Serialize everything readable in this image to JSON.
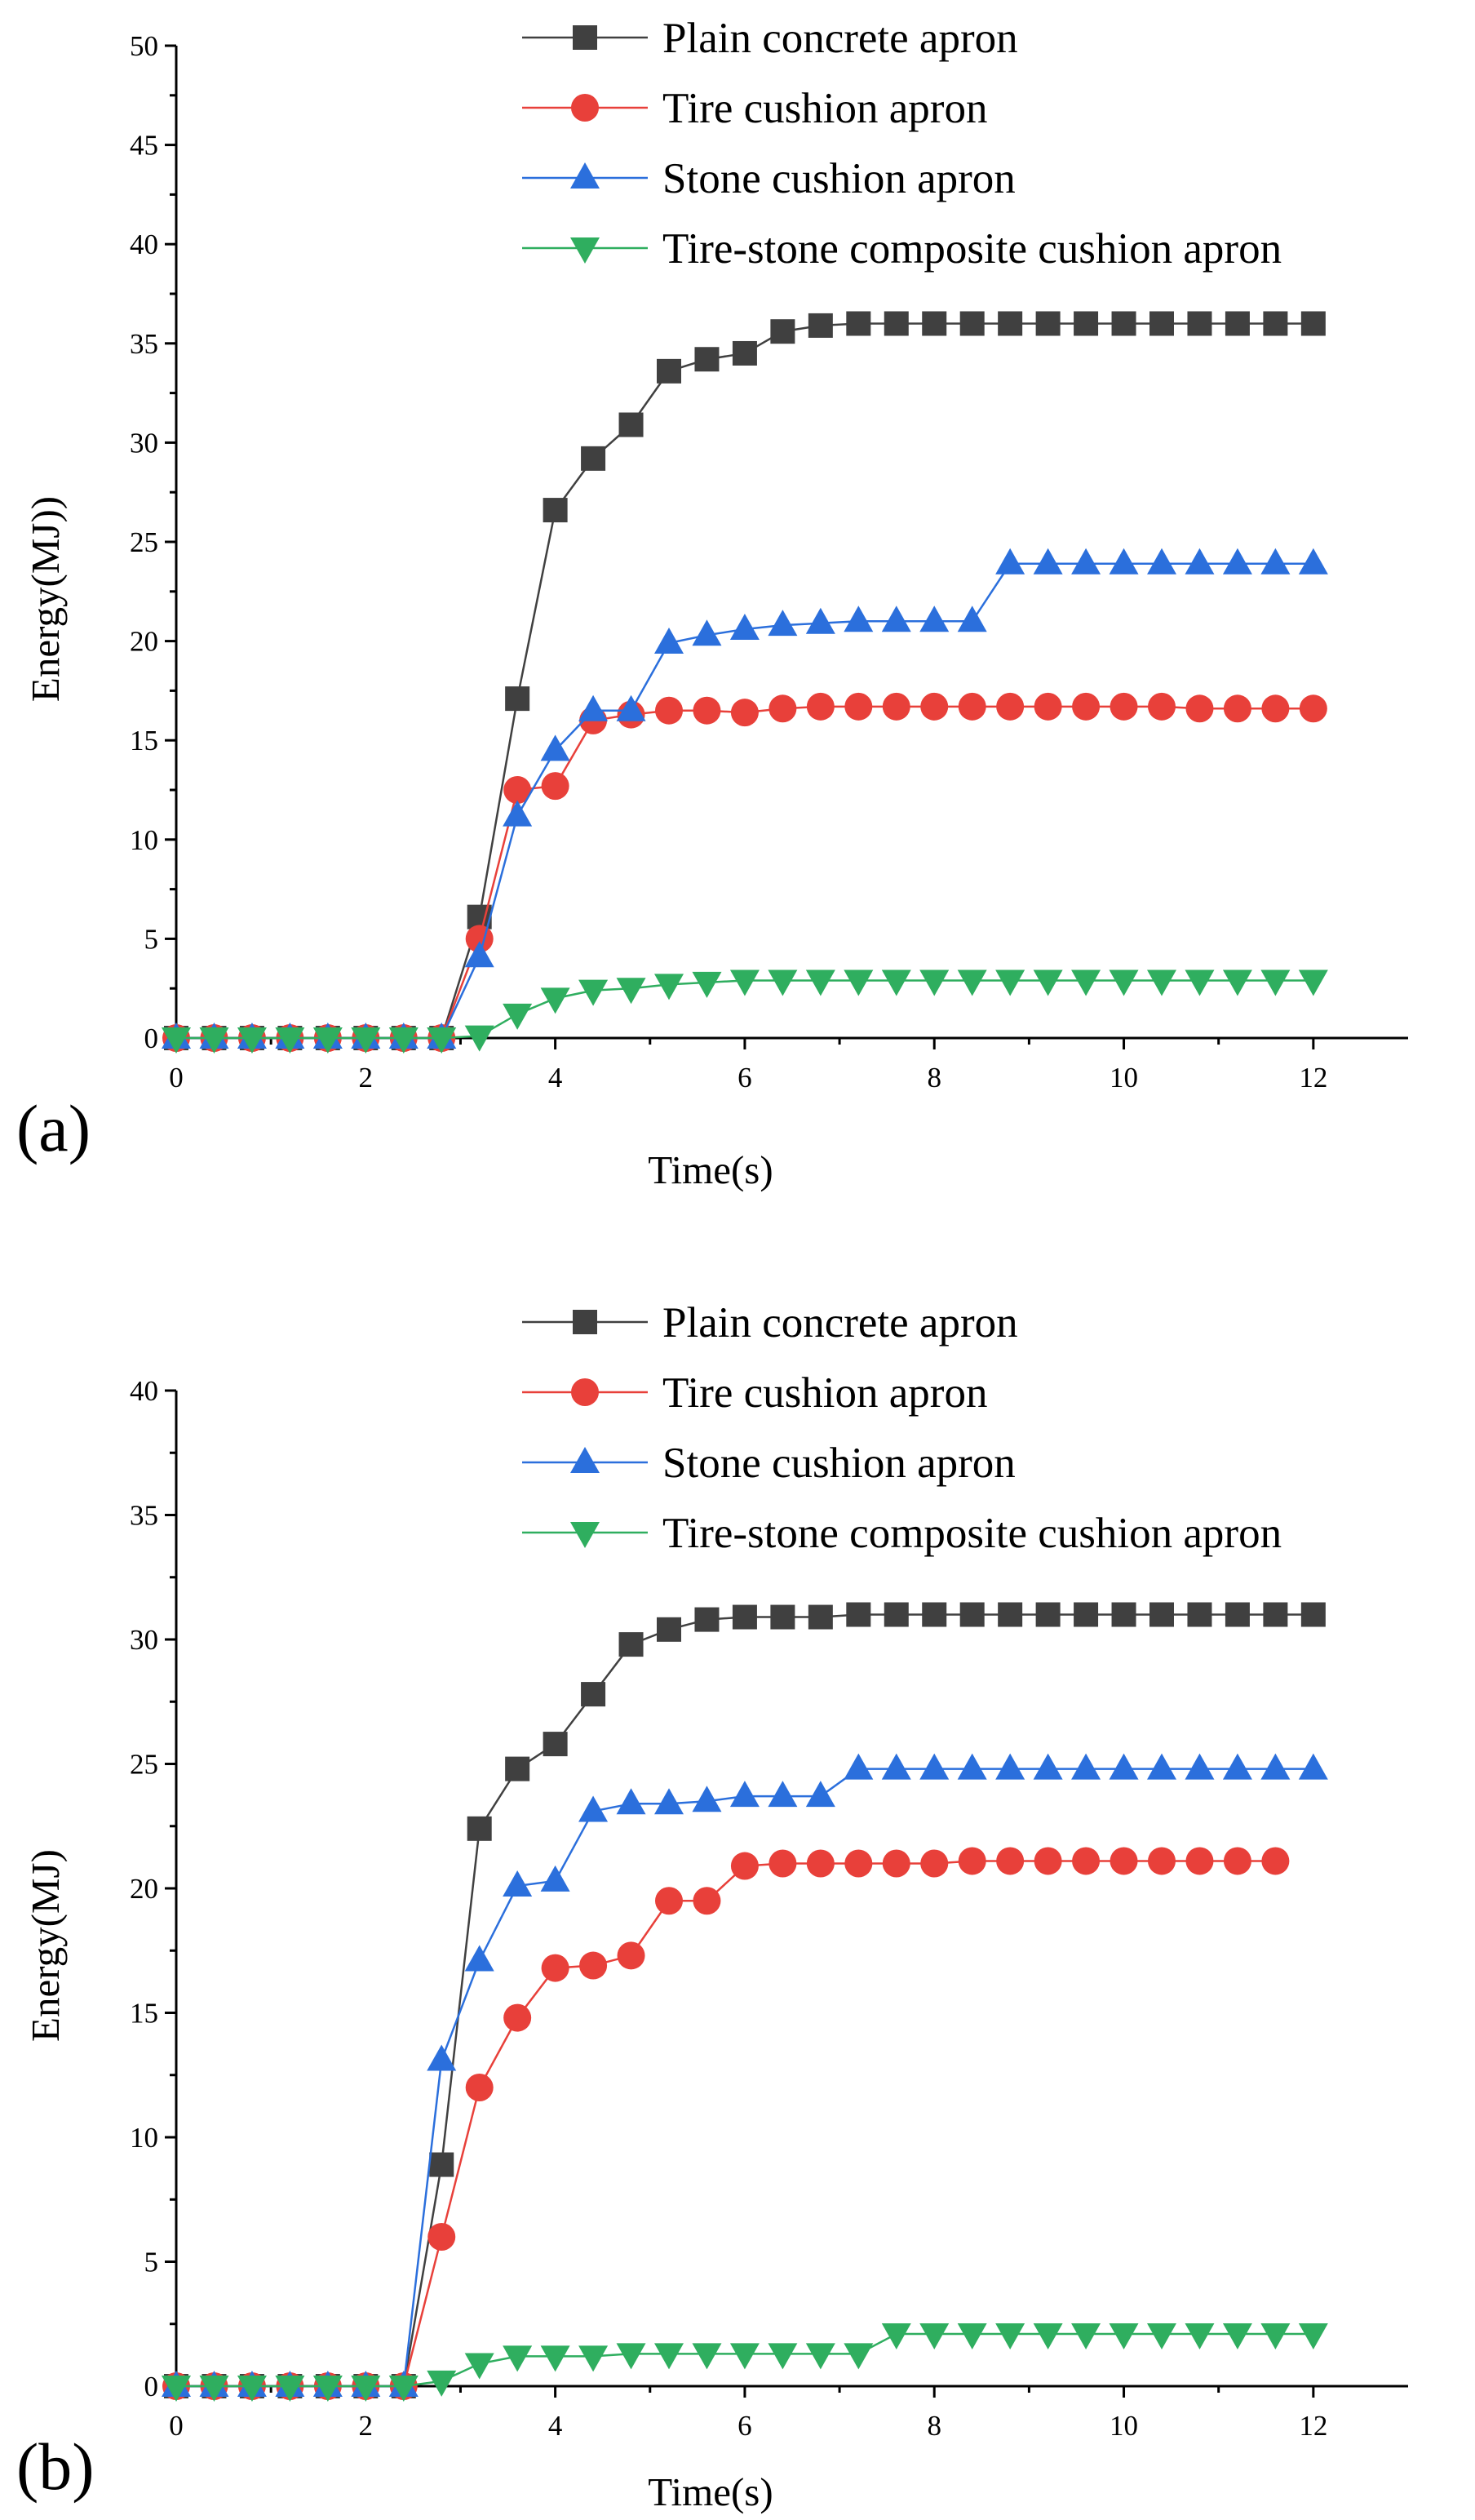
{
  "colors": {
    "plain": "#404040",
    "tire": "#e8403a",
    "stone": "#2b6fdc",
    "composite": "#2fae5f",
    "axis": "#000000"
  },
  "chart_data": [
    {
      "type": "line",
      "panel_label": "(a)",
      "xlabel": "Time(s)",
      "ylabel": "Energy(MJ))",
      "xlim": [
        0,
        13
      ],
      "ylim": [
        0,
        50
      ],
      "xticks": [
        0,
        2,
        4,
        6,
        8,
        10,
        12
      ],
      "yticks": [
        0,
        5,
        10,
        15,
        20,
        25,
        30,
        35,
        40,
        45,
        50
      ],
      "legend_position": "top-right",
      "series": [
        {
          "name": "Plain concrete apron",
          "color_key": "plain",
          "marker": "square",
          "x": [
            0,
            0.4,
            0.8,
            1.2,
            1.6,
            2.0,
            2.4,
            2.8,
            3.2,
            3.6,
            4.0,
            4.4,
            4.8,
            5.2,
            5.6,
            6.0,
            6.4,
            6.8,
            7.2,
            7.6,
            8.0,
            8.4,
            8.8,
            9.2,
            9.6,
            10.0,
            10.4,
            10.8,
            11.2,
            11.6,
            12.0
          ],
          "y": [
            0,
            0,
            0,
            0,
            0,
            0,
            0,
            0,
            6.1,
            17.1,
            26.6,
            29.2,
            30.9,
            33.6,
            34.2,
            34.5,
            35.6,
            35.9,
            36.0,
            36.0,
            36.0,
            36.0,
            36.0,
            36.0,
            36.0,
            36.0,
            36.0,
            36.0,
            36.0,
            36.0,
            36.0
          ]
        },
        {
          "name": "Tire cushion apron",
          "color_key": "tire",
          "marker": "circle",
          "x": [
            0,
            0.4,
            0.8,
            1.2,
            1.6,
            2.0,
            2.4,
            2.8,
            3.2,
            3.6,
            4.0,
            4.4,
            4.8,
            5.2,
            5.6,
            6.0,
            6.4,
            6.8,
            7.2,
            7.6,
            8.0,
            8.4,
            8.8,
            9.2,
            9.6,
            10.0,
            10.4,
            10.8,
            11.2,
            11.6,
            12.0
          ],
          "y": [
            0,
            0,
            0,
            0,
            0,
            0,
            0,
            0,
            5.0,
            12.5,
            12.7,
            16.0,
            16.3,
            16.5,
            16.5,
            16.4,
            16.6,
            16.7,
            16.7,
            16.7,
            16.7,
            16.7,
            16.7,
            16.7,
            16.7,
            16.7,
            16.7,
            16.6,
            16.6,
            16.6,
            16.6
          ]
        },
        {
          "name": "Stone cushion apron",
          "color_key": "stone",
          "marker": "triangle-up",
          "x": [
            0,
            0.4,
            0.8,
            1.2,
            1.6,
            2.0,
            2.4,
            2.8,
            3.2,
            3.6,
            4.0,
            4.4,
            4.8,
            5.2,
            5.6,
            6.0,
            6.4,
            6.8,
            7.2,
            7.6,
            8.0,
            8.4,
            8.8,
            9.2,
            9.6,
            10.0,
            10.4,
            10.8,
            11.2,
            11.6,
            12.0
          ],
          "y": [
            0,
            0,
            0,
            0,
            0,
            0,
            0,
            0,
            4.1,
            11.2,
            14.5,
            16.5,
            16.5,
            19.9,
            20.3,
            20.6,
            20.8,
            20.9,
            21.0,
            21.0,
            21.0,
            21.0,
            23.9,
            23.9,
            23.9,
            23.9,
            23.9,
            23.9,
            23.9,
            23.9,
            23.9
          ]
        },
        {
          "name": "Tire-stone composite cushion apron",
          "color_key": "composite",
          "marker": "triangle-down",
          "x": [
            0,
            0.4,
            0.8,
            1.2,
            1.6,
            2.0,
            2.4,
            2.8,
            3.2,
            3.6,
            4.0,
            4.4,
            4.8,
            5.2,
            5.6,
            6.0,
            6.4,
            6.8,
            7.2,
            7.6,
            8.0,
            8.4,
            8.8,
            9.2,
            9.6,
            10.0,
            10.4,
            10.8,
            11.2,
            11.6,
            12.0
          ],
          "y": [
            0,
            0,
            0,
            0,
            0,
            0,
            0,
            0,
            0.1,
            1.2,
            2.0,
            2.4,
            2.5,
            2.7,
            2.8,
            2.9,
            2.9,
            2.9,
            2.9,
            2.9,
            2.9,
            2.9,
            2.9,
            2.9,
            2.9,
            2.9,
            2.9,
            2.9,
            2.9,
            2.9,
            2.9
          ]
        }
      ]
    },
    {
      "type": "line",
      "panel_label": "(b)",
      "xlabel": "Time(s)",
      "ylabel": "Energy(MJ)",
      "xlim": [
        0,
        13
      ],
      "ylim": [
        0,
        40
      ],
      "xticks": [
        0,
        2,
        4,
        6,
        8,
        10,
        12
      ],
      "yticks": [
        0,
        5,
        10,
        15,
        20,
        25,
        30,
        35,
        40
      ],
      "legend_position": "top-right",
      "series": [
        {
          "name": "Plain concrete apron",
          "color_key": "plain",
          "marker": "square",
          "x": [
            0,
            0.4,
            0.8,
            1.2,
            1.6,
            2.0,
            2.4,
            2.8,
            3.2,
            3.6,
            4.0,
            4.4,
            4.8,
            5.2,
            5.6,
            6.0,
            6.4,
            6.8,
            7.2,
            7.6,
            8.0,
            8.4,
            8.8,
            9.2,
            9.6,
            10.0,
            10.4,
            10.8,
            11.2,
            11.6,
            12.0
          ],
          "y": [
            0,
            0,
            0,
            0,
            0,
            0,
            0,
            8.9,
            22.4,
            24.8,
            25.8,
            27.8,
            29.8,
            30.4,
            30.8,
            30.9,
            30.9,
            30.9,
            31.0,
            31.0,
            31.0,
            31.0,
            31.0,
            31.0,
            31.0,
            31.0,
            31.0,
            31.0,
            31.0,
            31.0,
            31.0
          ]
        },
        {
          "name": "Tire cushion apron",
          "color_key": "tire",
          "marker": "circle",
          "x": [
            0,
            0.4,
            0.8,
            1.2,
            1.6,
            2.0,
            2.4,
            2.8,
            3.2,
            3.6,
            4.0,
            4.4,
            4.8,
            5.2,
            5.6,
            6.0,
            6.4,
            6.8,
            7.2,
            7.6,
            8.0,
            8.4,
            8.8,
            9.2,
            9.6,
            10.0,
            10.4,
            10.8,
            11.2,
            11.6
          ],
          "y": [
            0,
            0,
            0,
            0,
            0,
            0,
            0,
            6.0,
            12.0,
            14.8,
            16.8,
            16.9,
            17.3,
            19.5,
            19.5,
            20.9,
            21.0,
            21.0,
            21.0,
            21.0,
            21.0,
            21.1,
            21.1,
            21.1,
            21.1,
            21.1,
            21.1,
            21.1,
            21.1,
            21.1
          ]
        },
        {
          "name": "Stone cushion apron",
          "color_key": "stone",
          "marker": "triangle-up",
          "x": [
            0,
            0.4,
            0.8,
            1.2,
            1.6,
            2.0,
            2.4,
            2.8,
            3.2,
            3.6,
            4.0,
            4.4,
            4.8,
            5.2,
            5.6,
            6.0,
            6.4,
            6.8,
            7.2,
            7.6,
            8.0,
            8.4,
            8.8,
            9.2,
            9.6,
            10.0,
            10.4,
            10.8,
            11.2,
            11.6,
            12.0
          ],
          "y": [
            0,
            0,
            0,
            0,
            0,
            0,
            0,
            13.1,
            17.1,
            20.1,
            20.3,
            23.1,
            23.4,
            23.4,
            23.5,
            23.7,
            23.7,
            23.7,
            24.8,
            24.8,
            24.8,
            24.8,
            24.8,
            24.8,
            24.8,
            24.8,
            24.8,
            24.8,
            24.8,
            24.8,
            24.8
          ]
        },
        {
          "name": "Tire-stone composite cushion apron",
          "color_key": "composite",
          "marker": "triangle-down",
          "x": [
            0,
            0.4,
            0.8,
            1.2,
            1.6,
            2.0,
            2.4,
            2.8,
            3.2,
            3.6,
            4.0,
            4.4,
            4.8,
            5.2,
            5.6,
            6.0,
            6.4,
            6.8,
            7.2,
            7.6,
            8.0,
            8.4,
            8.8,
            9.2,
            9.6,
            10.0,
            10.4,
            10.8,
            11.2,
            11.6,
            12.0
          ],
          "y": [
            0,
            0,
            0,
            0,
            0,
            0,
            0,
            0.2,
            0.9,
            1.2,
            1.2,
            1.2,
            1.3,
            1.3,
            1.3,
            1.3,
            1.3,
            1.3,
            1.3,
            2.1,
            2.1,
            2.1,
            2.1,
            2.1,
            2.1,
            2.1,
            2.1,
            2.1,
            2.1,
            2.1,
            2.1
          ]
        }
      ]
    }
  ]
}
